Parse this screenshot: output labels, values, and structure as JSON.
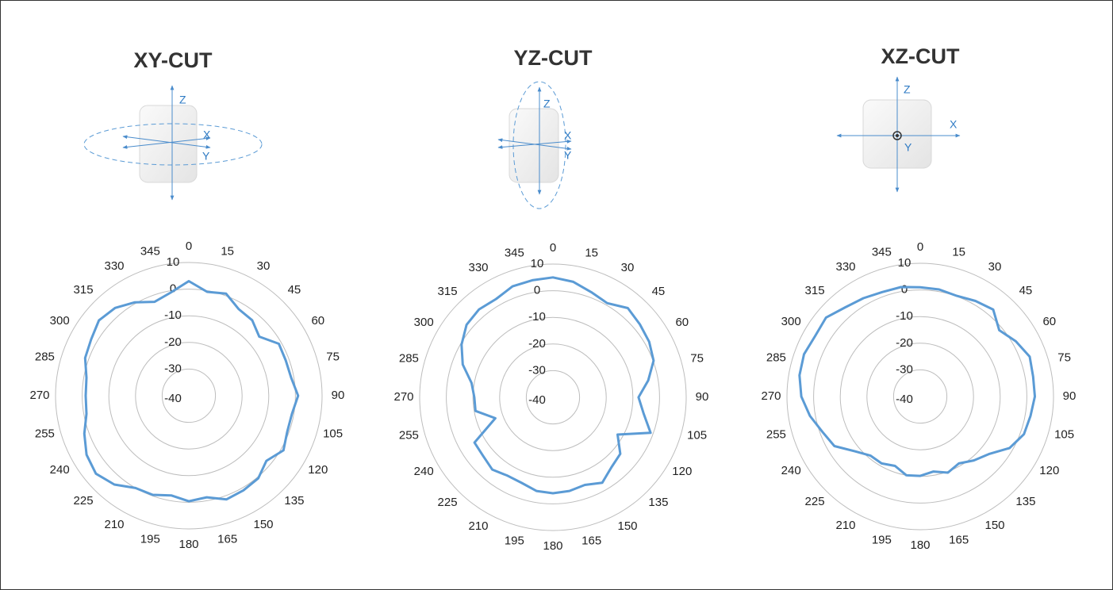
{
  "chart_data": [
    {
      "type": "polar",
      "title": "XY-CUT",
      "annotations": [
        "Z",
        "X",
        "Y"
      ],
      "theta": [
        0,
        10,
        20,
        30,
        40,
        50,
        60,
        70,
        80,
        90,
        100,
        110,
        120,
        130,
        140,
        150,
        160,
        170,
        180,
        190,
        200,
        210,
        220,
        230,
        240,
        250,
        260,
        270,
        280,
        290,
        300,
        310,
        320,
        330,
        340,
        350
      ],
      "values": [
        3,
        -0.4,
        0.8,
        -2.5,
        -3,
        -5.5,
        -1,
        -1.3,
        -1,
        1,
        -0.7,
        -0.7,
        1,
        -2,
        0.5,
        1,
        1.4,
        -1.3,
        -0.4,
        -2,
        -0.4,
        0,
        3.5,
        5.5,
        4.3,
        1.7,
        -1,
        -1.3,
        -1,
        1.4,
        2.3,
        4,
        3,
        0.5,
        -2.5,
        -0.7
      ],
      "color": "#5b9bd5",
      "rlim": [
        -40,
        10
      ],
      "rticks": [
        -40,
        -30,
        -20,
        -10,
        0,
        10
      ],
      "angleticks": [
        0,
        15,
        30,
        45,
        60,
        75,
        90,
        105,
        120,
        135,
        150,
        165,
        180,
        195,
        210,
        225,
        240,
        255,
        270,
        285,
        300,
        315,
        330,
        345
      ]
    },
    {
      "type": "polar",
      "title": "YZ-CUT",
      "annotations": [
        "Z",
        "X",
        "Y"
      ],
      "theta": [
        0,
        10,
        20,
        30,
        40,
        50,
        60,
        70,
        80,
        90,
        100,
        110,
        120,
        130,
        140,
        150,
        160,
        170,
        180,
        190,
        200,
        210,
        220,
        230,
        240,
        250,
        260,
        270,
        280,
        290,
        300,
        310,
        320,
        330,
        340,
        350
      ],
      "values": [
        5,
        4,
        2,
        0.8,
        3.7,
        2.6,
        1.7,
        0.2,
        -3.7,
        -7.9,
        -5.5,
        -1,
        -12,
        -7,
        -5.8,
        -3,
        -5,
        -4.3,
        -4,
        -4.3,
        -5.8,
        -6,
        -4.6,
        -5.8,
        -6,
        -17,
        -10.5,
        -10.5,
        -9,
        -4,
        -0.4,
        2.3,
        3.1,
        2.6,
        4.3,
        4.6
      ],
      "color": "#5b9bd5",
      "rlim": [
        -40,
        10
      ],
      "rticks": [
        -40,
        -30,
        -20,
        -10,
        0,
        10
      ],
      "angleticks": [
        0,
        15,
        30,
        45,
        60,
        75,
        90,
        105,
        120,
        135,
        150,
        165,
        180,
        195,
        210,
        225,
        240,
        255,
        270,
        285,
        300,
        315,
        330,
        345
      ]
    },
    {
      "type": "polar",
      "title": "XZ-CUT",
      "annotations": [
        "Z",
        "X",
        "Y"
      ],
      "theta": [
        0,
        10,
        20,
        30,
        40,
        50,
        60,
        70,
        80,
        90,
        100,
        110,
        120,
        130,
        140,
        150,
        160,
        170,
        180,
        190,
        200,
        210,
        220,
        230,
        240,
        250,
        260,
        270,
        280,
        290,
        300,
        310,
        320,
        330,
        340,
        350
      ],
      "values": [
        1,
        0.8,
        0.2,
        1.4,
        2.6,
        -1.3,
        1.4,
        3.7,
        3,
        3,
        2,
        1.4,
        -1.3,
        -6.4,
        -8.7,
        -11,
        -9.6,
        -11.4,
        -10.2,
        -10,
        -12.3,
        -11,
        -11,
        -8,
        -2.8,
        -1,
        2,
        4.6,
        6,
        6.4,
        5.5,
        6.1,
        3.7,
        2.6,
        1.7,
        1.7
      ],
      "color": "#5b9bd5",
      "rlim": [
        -40,
        10
      ],
      "rticks": [
        -40,
        -30,
        -20,
        -10,
        0,
        10
      ],
      "angleticks": [
        0,
        15,
        30,
        45,
        60,
        75,
        90,
        105,
        120,
        135,
        150,
        165,
        180,
        195,
        210,
        225,
        240,
        255,
        270,
        285,
        300,
        315,
        330,
        345
      ]
    }
  ]
}
